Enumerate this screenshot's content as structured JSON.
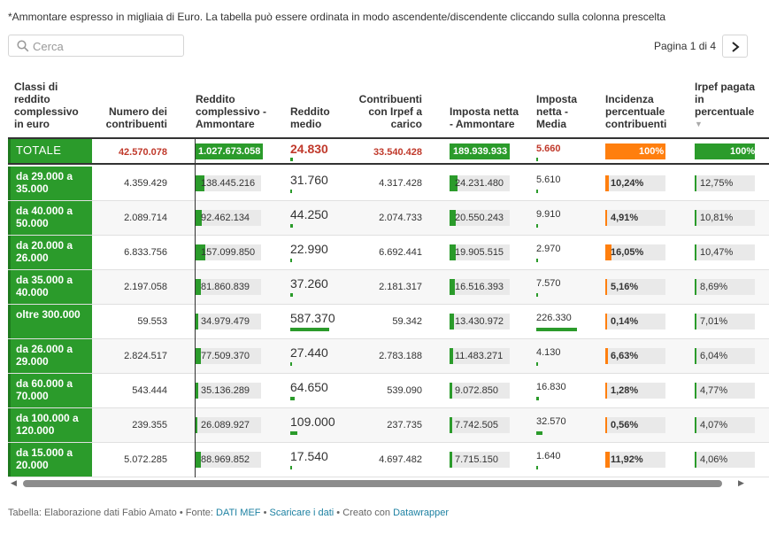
{
  "note": "*Ammontare espresso in migliaia di Euro. La tabella può essere ordinata in modo ascendente/discendente cliccando sulla colonna prescelta",
  "search": {
    "placeholder": "Cerca"
  },
  "pager": {
    "text": "Pagina 1 di 4"
  },
  "columns": {
    "classi": "Classi di reddito complessivo in euro",
    "numero": "Numero dei contribuenti",
    "reddito_amm": "Reddito complessivo - Ammontare",
    "reddito_medio": "Reddito medio",
    "contribuenti_irpef": "Contribuenti con Irpef a carico",
    "imposta_amm": "Imposta netta - Ammontare",
    "imposta_media": "Imposta netta - Media",
    "incidenza": "Incidenza percentuale contribuenti",
    "irpef_pct": "Irpef pagata in percentuale"
  },
  "total": {
    "label": "TOTALE",
    "numero": "42.570.078",
    "reddito_amm": "1.027.673.058",
    "reddito_medio": "24.830",
    "contribuenti_irpef": "33.540.428",
    "imposta_amm": "189.939.933",
    "imposta_media": "5.660",
    "incidenza": "100%",
    "irpef_pct": "100%"
  },
  "rows": [
    {
      "label": "da 29.000 a 35.000",
      "numero": "4.359.429",
      "reddito_amm": "138.445.216",
      "reddito_medio": "31.760",
      "contribuenti_irpef": "4.317.428",
      "imposta_amm": "24.231.480",
      "imposta_media": "5.610",
      "incidenza": "10,24%",
      "irpef_pct": "12,75%",
      "reddito_amm_frac": 0.135,
      "imposta_amm_frac": 0.128,
      "reddito_medio_frac": 0.054,
      "imposta_media_frac": 0.025,
      "incidenza_frac": 0.1024,
      "irpef_frac": 0.1275
    },
    {
      "label": "da 40.000 a 50.000",
      "numero": "2.089.714",
      "reddito_amm": "92.462.134",
      "reddito_medio": "44.250",
      "contribuenti_irpef": "2.074.733",
      "imposta_amm": "20.550.243",
      "imposta_media": "9.910",
      "incidenza": "4,91%",
      "irpef_pct": "10,81%",
      "reddito_amm_frac": 0.09,
      "imposta_amm_frac": 0.108,
      "reddito_medio_frac": 0.075,
      "imposta_media_frac": 0.044,
      "incidenza_frac": 0.0491,
      "irpef_frac": 0.1081
    },
    {
      "label": "da 20.000 a 26.000",
      "numero": "6.833.756",
      "reddito_amm": "157.099.850",
      "reddito_medio": "22.990",
      "contribuenti_irpef": "6.692.441",
      "imposta_amm": "19.905.515",
      "imposta_media": "2.970",
      "incidenza": "16,05%",
      "irpef_pct": "10,47%",
      "reddito_amm_frac": 0.153,
      "imposta_amm_frac": 0.105,
      "reddito_medio_frac": 0.039,
      "imposta_media_frac": 0.013,
      "incidenza_frac": 0.1605,
      "irpef_frac": 0.1047,
      "bold_imposta": true
    },
    {
      "label": "da 35.000 a 40.000",
      "numero": "2.197.058",
      "reddito_amm": "81.860.839",
      "reddito_medio": "37.260",
      "contribuenti_irpef": "2.181.317",
      "imposta_amm": "16.516.393",
      "imposta_media": "7.570",
      "incidenza": "5,16%",
      "irpef_pct": "8,69%",
      "reddito_amm_frac": 0.08,
      "imposta_amm_frac": 0.087,
      "reddito_medio_frac": 0.063,
      "imposta_media_frac": 0.033,
      "incidenza_frac": 0.0516,
      "irpef_frac": 0.0869
    },
    {
      "label": "oltre 300.000",
      "numero": "59.553",
      "reddito_amm": "34.979.479",
      "reddito_medio": "587.370",
      "contribuenti_irpef": "59.342",
      "imposta_amm": "13.430.972",
      "imposta_media": "226.330",
      "incidenza": "0,14%",
      "irpef_pct": "7,01%",
      "reddito_amm_frac": 0.034,
      "imposta_amm_frac": 0.071,
      "reddito_medio_frac": 1.0,
      "imposta_media_frac": 1.0,
      "incidenza_frac": 0.0014,
      "irpef_frac": 0.0701
    },
    {
      "label": "da 26.000 a 29.000",
      "numero": "2.824.517",
      "reddito_amm": "77.509.370",
      "reddito_medio": "27.440",
      "contribuenti_irpef": "2.783.188",
      "imposta_amm": "11.483.271",
      "imposta_media": "4.130",
      "incidenza": "6,63%",
      "irpef_pct": "6,04%",
      "reddito_amm_frac": 0.075,
      "imposta_amm_frac": 0.06,
      "reddito_medio_frac": 0.047,
      "imposta_media_frac": 0.018,
      "incidenza_frac": 0.0663,
      "irpef_frac": 0.0604
    },
    {
      "label": "da 60.000 a 70.000",
      "numero": "543.444",
      "reddito_amm": "35.136.289",
      "reddito_medio": "64.650",
      "contribuenti_irpef": "539.090",
      "imposta_amm": "9.072.850",
      "imposta_media": "16.830",
      "incidenza": "1,28%",
      "irpef_pct": "4,77%",
      "reddito_amm_frac": 0.034,
      "imposta_amm_frac": 0.048,
      "reddito_medio_frac": 0.11,
      "imposta_media_frac": 0.074,
      "incidenza_frac": 0.0128,
      "irpef_frac": 0.0477
    },
    {
      "label": "da 100.000 a 120.000",
      "numero": "239.355",
      "reddito_amm": "26.089.927",
      "reddito_medio": "109.000",
      "contribuenti_irpef": "237.735",
      "imposta_amm": "7.742.505",
      "imposta_media": "32.570",
      "incidenza": "0,56%",
      "irpef_pct": "4,07%",
      "reddito_amm_frac": 0.025,
      "imposta_amm_frac": 0.041,
      "reddito_medio_frac": 0.186,
      "imposta_media_frac": 0.144,
      "incidenza_frac": 0.0056,
      "irpef_frac": 0.0407
    },
    {
      "label": "da 15.000 a 20.000",
      "numero": "5.072.285",
      "reddito_amm": "88.969.852",
      "reddito_medio": "17.540",
      "contribuenti_irpef": "4.697.482",
      "imposta_amm": "7.715.150",
      "imposta_media": "1.640",
      "incidenza": "11,92%",
      "irpef_pct": "4,06%",
      "reddito_amm_frac": 0.087,
      "imposta_amm_frac": 0.041,
      "reddito_medio_frac": 0.03,
      "imposta_media_frac": 0.007,
      "incidenza_frac": 0.1192,
      "irpef_frac": 0.0406
    }
  ],
  "footer": {
    "prefix": "Tabella: Elaborazione dati Fabio Amato • Fonte: ",
    "source_link": "DATI MEF",
    "sep1": " • ",
    "download_link": "Scaricare i dati",
    "sep2": " • Creato con ",
    "tool_link": "Datawrapper"
  },
  "colors": {
    "green": "#2b9b2b",
    "orange": "#ff7f0e",
    "red": "#c0392b",
    "link": "#1d81a2"
  }
}
